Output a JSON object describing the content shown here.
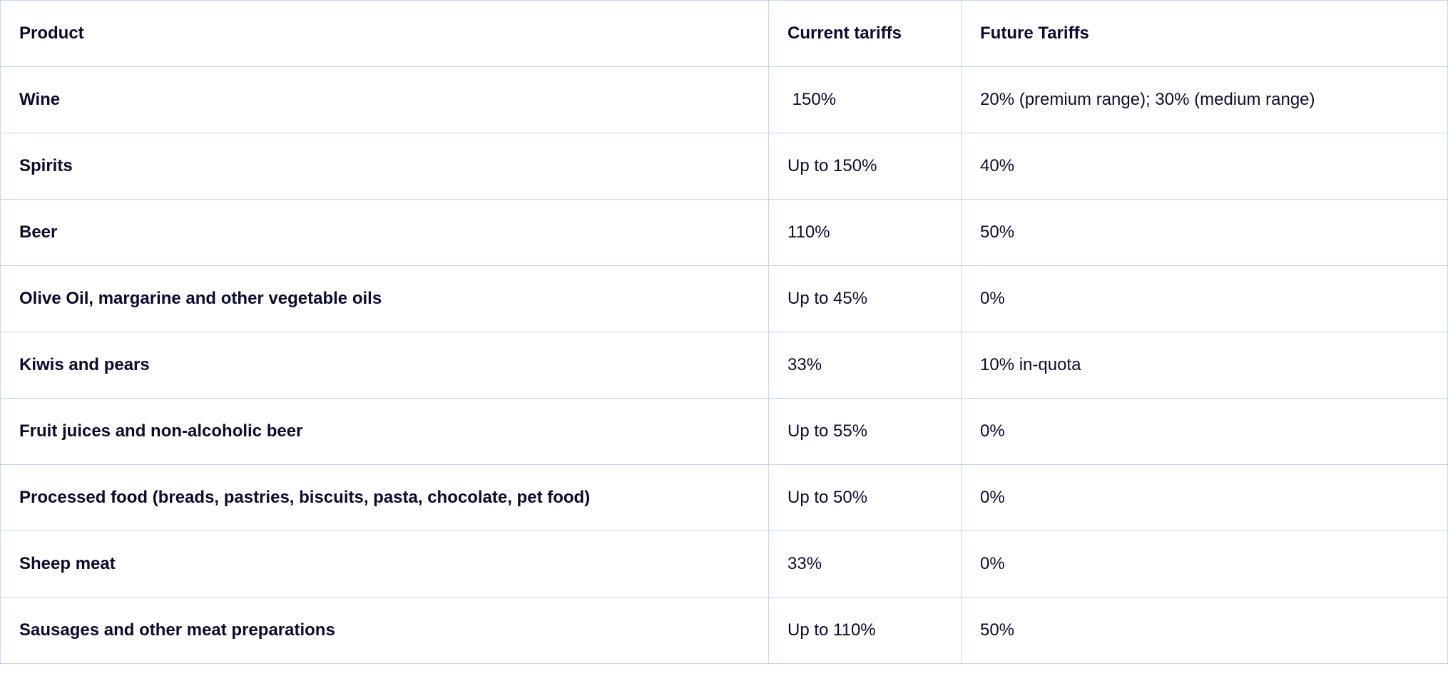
{
  "table": {
    "headers": [
      "Product",
      "Current tariffs",
      "Future Tariffs"
    ],
    "rows": [
      [
        "Wine",
        " 150%",
        "20% (premium range); 30% (medium range)"
      ],
      [
        "Spirits",
        "Up to 150%",
        "40%"
      ],
      [
        "Beer",
        "110%",
        "50%"
      ],
      [
        "Olive Oil, margarine and other vegetable oils",
        "Up to 45%",
        "0%"
      ],
      [
        "Kiwis and pears",
        "33%",
        "10% in-quota"
      ],
      [
        "Fruit juices and non-alcoholic beer",
        "Up to 55%",
        "0%"
      ],
      [
        "Processed food (breads, pastries, biscuits, pasta, chocolate, pet food)",
        "Up to 50%",
        "0%"
      ],
      [
        "Sheep meat",
        "33%",
        "0%"
      ],
      [
        "Sausages and other meat preparations",
        "Up to 110%",
        "50%"
      ]
    ]
  }
}
